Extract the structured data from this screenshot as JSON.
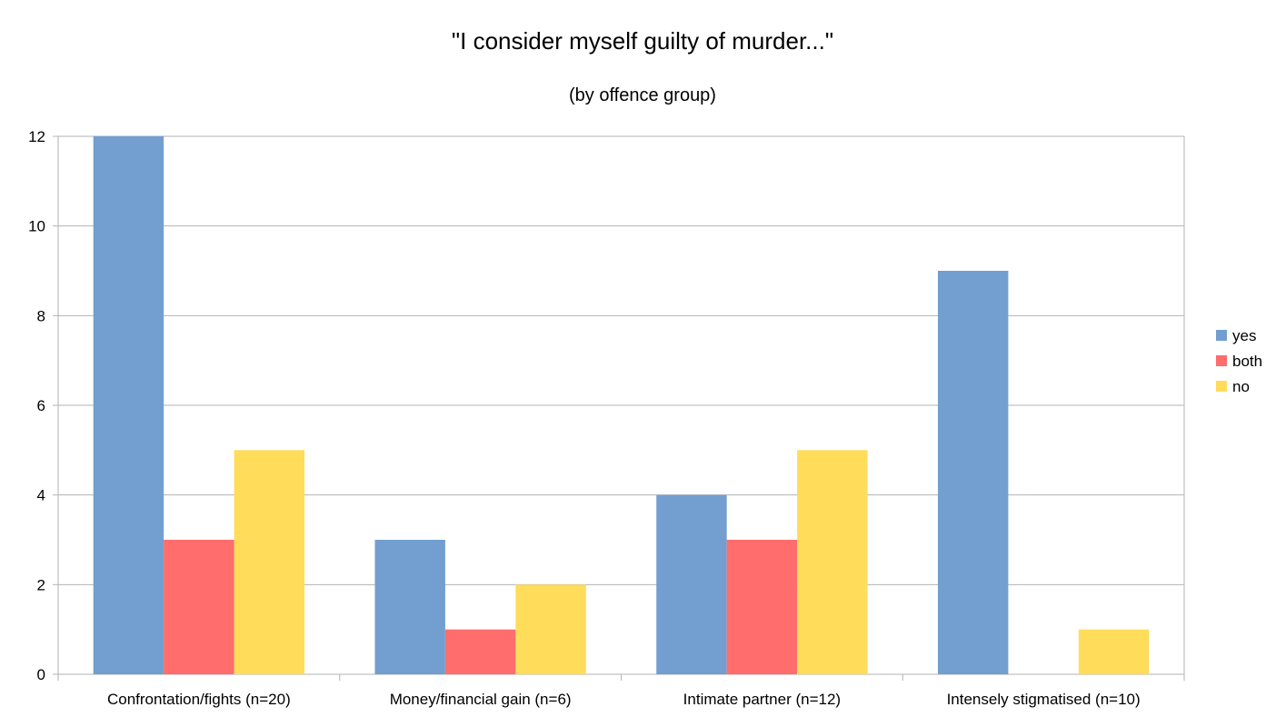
{
  "chart_data": {
    "type": "bar",
    "title": "\"I consider myself guilty of murder...\"",
    "subtitle": "(by offence group)",
    "categories": [
      "Confrontation/fights (n=20)",
      "Money/financial gain (n=6)",
      "Intimate partner (n=12)",
      "Intensely stigmatised (n=10)"
    ],
    "series": [
      {
        "name": "yes",
        "color": "#729fcf",
        "values": [
          12,
          3,
          4,
          9
        ]
      },
      {
        "name": "both",
        "color": "#ff6d6d",
        "values": [
          3,
          1,
          3,
          0
        ]
      },
      {
        "name": "no",
        "color": "#ffdc5a",
        "values": [
          5,
          2,
          5,
          1
        ]
      }
    ],
    "ylim": [
      0,
      12
    ],
    "yticks": [
      0,
      2,
      4,
      6,
      8,
      10,
      12
    ],
    "grid": true,
    "legend_position": "right"
  }
}
